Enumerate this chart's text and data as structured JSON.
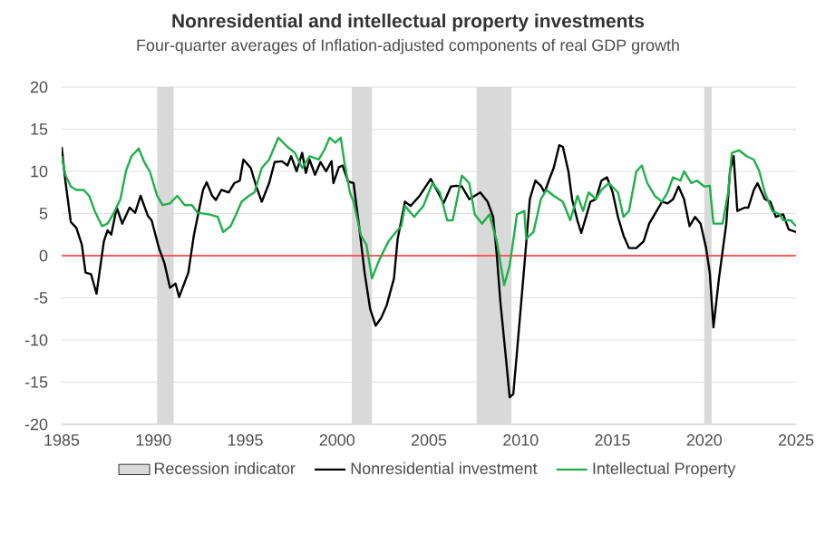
{
  "chart_data": {
    "type": "line",
    "title": "Nonresidential and intellectual property investments",
    "subtitle": "Four-quarter averages of Inflation-adjusted components of real GDP growth",
    "xlim": [
      1985,
      2025
    ],
    "xticks": [
      1985,
      1990,
      1995,
      2000,
      2005,
      2010,
      2015,
      2020,
      2025
    ],
    "ylim": [
      -20,
      20
    ],
    "yticks": [
      -20,
      -15,
      -10,
      -5,
      0,
      5,
      10,
      15,
      20
    ],
    "grid": "y",
    "legend": "bottom",
    "ref_lines": [
      {
        "axis": "y",
        "value": 0,
        "color": "#ff5a5a"
      }
    ],
    "bands": [
      {
        "axis": "x",
        "from": 1990.2,
        "to": 1991.1,
        "label": "Recession indicator",
        "color": "#d9d9d9"
      },
      {
        "axis": "x",
        "from": 2000.8,
        "to": 2001.9,
        "color": "#d9d9d9"
      },
      {
        "axis": "x",
        "from": 2007.6,
        "to": 2009.5,
        "color": "#d9d9d9"
      },
      {
        "axis": "x",
        "from": 2020.0,
        "to": 2020.4,
        "color": "#d9d9d9"
      }
    ],
    "series": [
      {
        "name": "Nonresidential investment",
        "color": "#000000",
        "x": [
          1985.0,
          1985.2,
          1985.5,
          1985.8,
          1986.1,
          1986.3,
          1986.6,
          1986.9,
          1987.3,
          1987.5,
          1987.7,
          1988.0,
          1988.3,
          1988.7,
          1989.0,
          1989.3,
          1989.7,
          1989.9,
          1990.3,
          1990.6,
          1990.9,
          1991.2,
          1991.4,
          1991.9,
          1992.2,
          1992.7,
          1992.9,
          1993.2,
          1993.4,
          1993.7,
          1994.1,
          1994.4,
          1994.7,
          1994.9,
          1995.3,
          1995.6,
          1995.9,
          1996.3,
          1996.6,
          1997.0,
          1997.3,
          1997.5,
          1997.8,
          1998.1,
          1998.3,
          1998.5,
          1998.8,
          1999.1,
          1999.4,
          1999.7,
          1999.8,
          2000.1,
          2000.3,
          2000.6,
          2000.9,
          2001.2,
          2001.5,
          2001.8,
          2002.1,
          2002.4,
          2002.7,
          2003.1,
          2003.3,
          2003.7,
          2004.0,
          2004.5,
          2005.1,
          2005.5,
          2005.8,
          2006.2,
          2006.5,
          2006.8,
          2007.2,
          2007.5,
          2007.8,
          2008.2,
          2008.5,
          2008.7,
          2008.9,
          2009.2,
          2009.4,
          2009.6,
          2009.8,
          2010.2,
          2010.5,
          2010.8,
          2011.1,
          2011.3,
          2011.6,
          2011.8,
          2012.1,
          2012.3,
          2012.6,
          2012.8,
          2013.1,
          2013.3,
          2013.6,
          2013.8,
          2014.1,
          2014.4,
          2014.7,
          2015.0,
          2015.3,
          2015.6,
          2015.9,
          2016.3,
          2016.7,
          2017.0,
          2017.3,
          2017.7,
          2018.0,
          2018.3,
          2018.6,
          2018.9,
          2019.2,
          2019.5,
          2019.8,
          2020.1,
          2020.3,
          2020.5,
          2020.8,
          2021.2,
          2021.4,
          2021.6,
          2021.8,
          2022.2,
          2022.4,
          2022.7,
          2022.9,
          2023.3,
          2023.6,
          2023.9,
          2024.3,
          2024.6,
          2025.0
        ],
        "values": [
          12.9,
          8.9,
          4,
          3.3,
          1.3,
          -2,
          -2.2,
          -4.5,
          1.7,
          3,
          2.5,
          5.7,
          3.8,
          5.7,
          5.1,
          7.1,
          4.7,
          4.2,
          0.9,
          -0.9,
          -3.8,
          -3.3,
          -4.9,
          -2,
          2.4,
          7.8,
          8.7,
          7.1,
          6.6,
          7.8,
          7.5,
          8.6,
          8.9,
          11.4,
          10.4,
          8.2,
          6.4,
          8.6,
          11.1,
          11.2,
          10.7,
          11.8,
          10,
          12.2,
          9.8,
          11.4,
          9.6,
          11.1,
          10,
          11.2,
          8.6,
          10.5,
          10.7,
          8.8,
          8.6,
          3.5,
          -2,
          -6.3,
          -8.3,
          -7.4,
          -5.9,
          -2.7,
          2,
          6.4,
          5.9,
          7.1,
          9.1,
          7.5,
          6.2,
          8.2,
          8.3,
          8.2,
          6.7,
          7.1,
          7.5,
          6.4,
          4.6,
          0.1,
          -5.6,
          -12.2,
          -16.8,
          -16.4,
          -11.4,
          -1.2,
          6.7,
          8.9,
          8.3,
          7.5,
          9.3,
          10.4,
          13.1,
          12.9,
          10,
          6.7,
          4.1,
          2.7,
          4.9,
          6.4,
          6.7,
          8.9,
          9.3,
          7.6,
          4.6,
          2.4,
          0.9,
          0.9,
          1.7,
          3.8,
          4.9,
          6.4,
          6.2,
          6.7,
          8.2,
          6.7,
          3.5,
          4.6,
          3.8,
          0.9,
          -2,
          -8.5,
          -2.7,
          3.8,
          10,
          11.8,
          5.3,
          5.7,
          5.7,
          7.8,
          8.6,
          6.7,
          6.4,
          4.6,
          4.9,
          3.1,
          2.8
        ]
      },
      {
        "name": "Intellectual Property",
        "color": "#1fb04a",
        "x": [
          1985.0,
          1985.2,
          1985.5,
          1985.8,
          1986.2,
          1986.5,
          1986.8,
          1987.2,
          1987.5,
          1987.8,
          1988.2,
          1988.5,
          1988.8,
          1989.2,
          1989.5,
          1989.8,
          1990.2,
          1990.5,
          1990.9,
          1991.3,
          1991.7,
          1992.1,
          1992.4,
          1993.0,
          1993.5,
          1993.8,
          1994.2,
          1994.5,
          1994.8,
          1995.2,
          1995.5,
          1995.9,
          1996.3,
          1996.8,
          1997.3,
          1997.7,
          1998.1,
          1998.5,
          1999.0,
          1999.3,
          1999.6,
          1999.9,
          2000.2,
          2000.4,
          2000.7,
          2000.9,
          2001.3,
          2001.6,
          2001.9,
          2002.3,
          2002.8,
          2003.2,
          2003.5,
          2003.7,
          2004.2,
          2004.7,
          2005.2,
          2005.6,
          2006.0,
          2006.3,
          2006.8,
          2007.2,
          2007.5,
          2007.9,
          2008.3,
          2008.7,
          2009.1,
          2009.4,
          2009.8,
          2010.2,
          2010.3,
          2010.7,
          2011.1,
          2011.4,
          2011.8,
          2012.3,
          2012.7,
          2013.1,
          2013.4,
          2013.7,
          2014.1,
          2014.4,
          2014.8,
          2015.3,
          2015.6,
          2015.9,
          2016.3,
          2016.6,
          2016.9,
          2017.3,
          2017.7,
          2018.0,
          2018.3,
          2018.7,
          2018.9,
          2019.3,
          2019.6,
          2020.0,
          2020.3,
          2020.5,
          2021.0,
          2021.3,
          2021.5,
          2021.9,
          2022.3,
          2022.7,
          2023.0,
          2023.3,
          2023.7,
          2024.1,
          2024.3,
          2024.7,
          2025.0
        ],
        "values": [
          11.8,
          9.6,
          8.2,
          7.8,
          7.8,
          7.1,
          5.3,
          3.5,
          3.8,
          4.9,
          6.7,
          10,
          11.8,
          12.7,
          11.1,
          10,
          7.1,
          6,
          6.2,
          7.1,
          6,
          6,
          5.1,
          4.9,
          4.6,
          2.8,
          3.5,
          4.9,
          6.4,
          7.1,
          7.5,
          10.4,
          11.4,
          14,
          12.9,
          12.2,
          10.4,
          11.8,
          11.4,
          12.5,
          14,
          13.4,
          14,
          11.1,
          7.5,
          6.4,
          2.4,
          1.3,
          -2.7,
          -0.5,
          1.7,
          2.8,
          3.5,
          5.9,
          4.6,
          5.9,
          8.6,
          7.5,
          4.2,
          4.2,
          9.5,
          8.6,
          4.9,
          3.8,
          4.9,
          1.7,
          -3.5,
          -1.2,
          4.9,
          5.3,
          2,
          2.8,
          6.7,
          7.8,
          7.1,
          6.4,
          4.2,
          7.1,
          5.3,
          7.5,
          6.7,
          7.8,
          8.6,
          7.5,
          4.6,
          5.3,
          10,
          10.7,
          8.6,
          7.1,
          6.4,
          7.5,
          9.3,
          8.9,
          10,
          8.6,
          8.9,
          8.2,
          8.3,
          3.8,
          3.8,
          7.5,
          12.2,
          12.5,
          11.8,
          11.4,
          10,
          7.5,
          5.3,
          4.9,
          4.2,
          4.2,
          3.5
        ]
      }
    ]
  }
}
